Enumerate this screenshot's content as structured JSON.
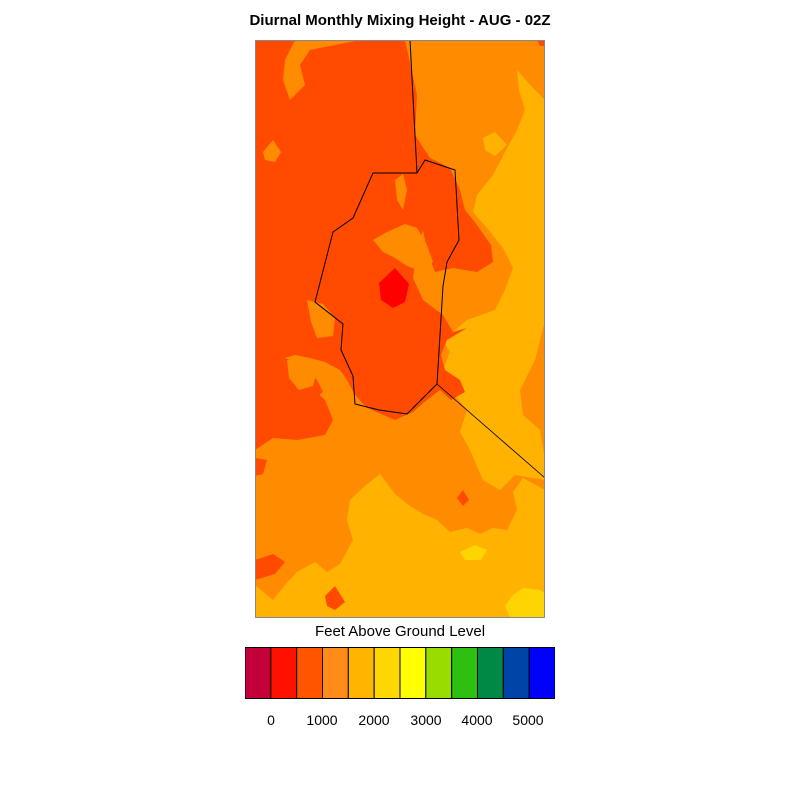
{
  "title": "Diurnal Monthly Mixing Height - AUG - 02Z",
  "legend": {
    "label": "Feet Above Ground Level",
    "colors": [
      "#c4003a",
      "#ff1100",
      "#ff5500",
      "#ff8c1a",
      "#ffb400",
      "#ffd700",
      "#ffff00",
      "#99dd00",
      "#2fbf10",
      "#008845",
      "#0044a8",
      "#0000ff"
    ],
    "ticks": [
      "0",
      "1000",
      "2000",
      "3000",
      "4000",
      "5000"
    ]
  },
  "map_colors": {
    "level_1000": "#ff4a00",
    "level_1500": "#ff8c00",
    "level_2000": "#ffb300",
    "level_2500": "#ffd400",
    "level_500": "#ff0000"
  }
}
